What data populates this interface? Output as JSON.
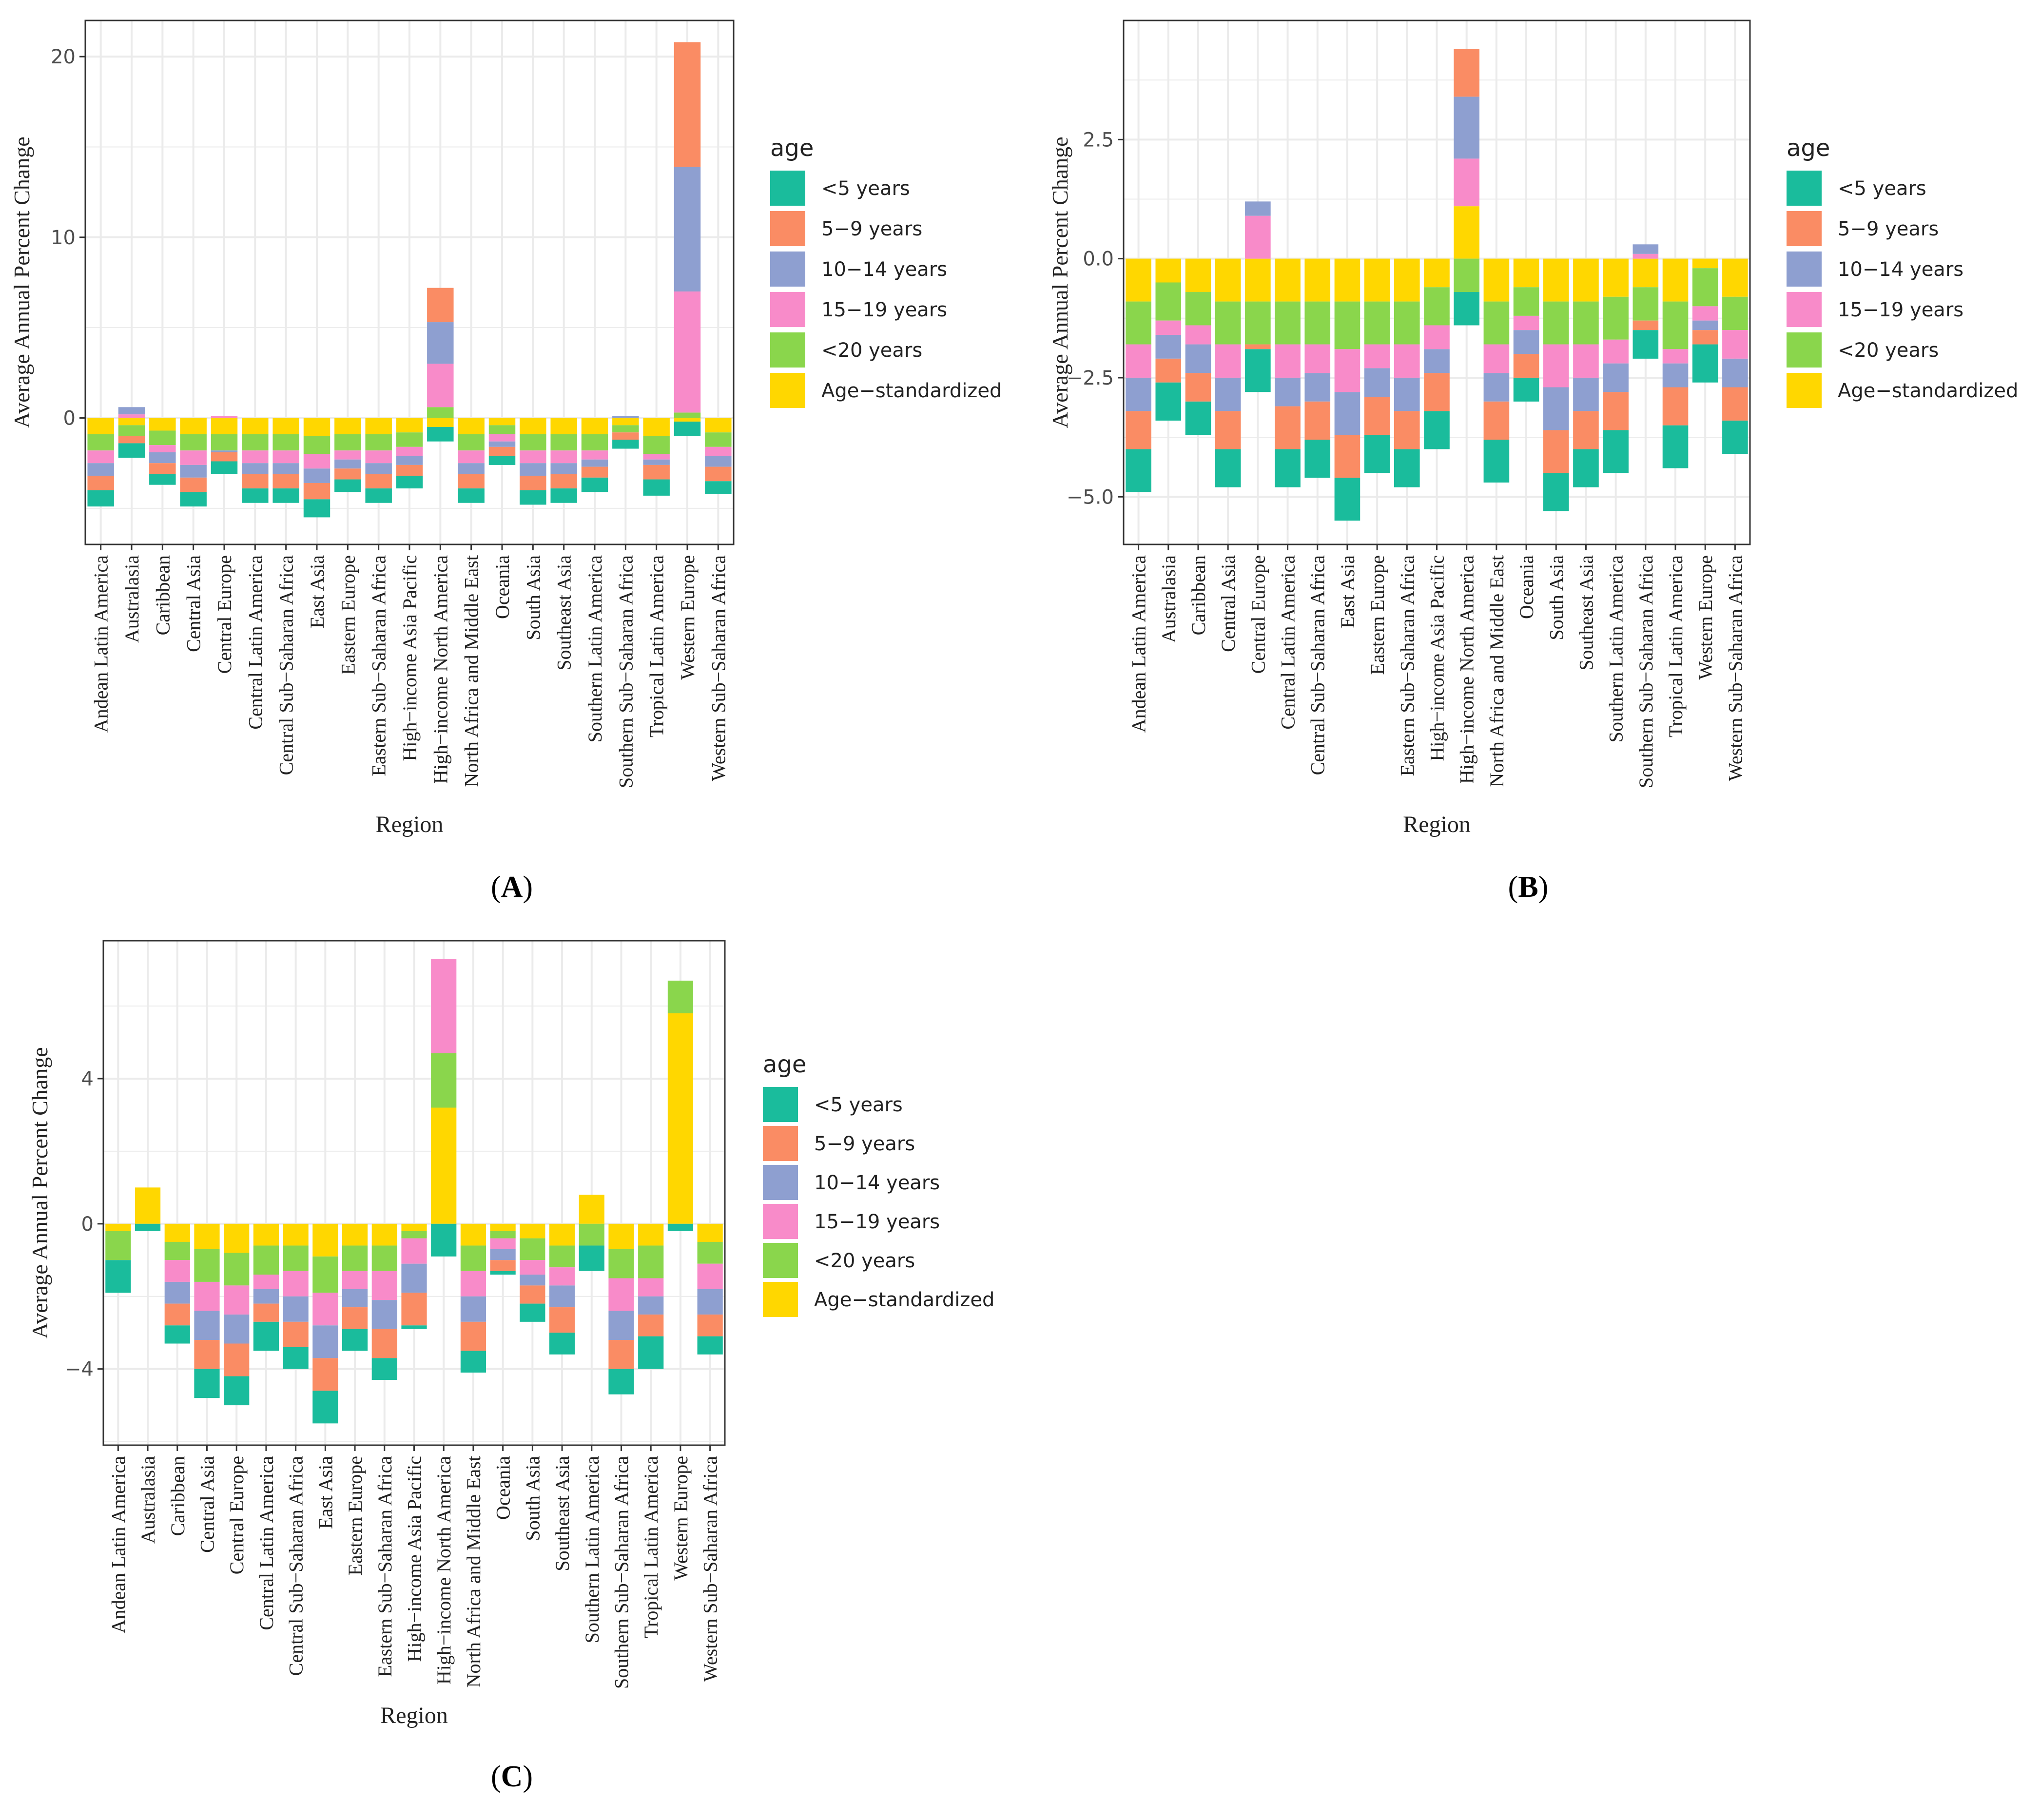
{
  "colors": {
    "<5 years": "#1ABC9C",
    "5-9 years": "#FA8C64",
    "10-14 years": "#8E9FD0",
    "15-19 years": "#F88BC9",
    "<20 years": "#8AD64C",
    "Age-standardized": "#FFD700",
    "panel_bg": "#FFFFFF",
    "grid": "#EBEBEB",
    "frame": "#333333"
  },
  "chart_data": [
    {
      "panel_label": "A",
      "type": "bar",
      "stacked": true,
      "xlabel": "Region",
      "ylabel": "Average Annual Percent Change",
      "ylim": [
        -7,
        22
      ],
      "yticks": [
        0,
        10,
        20
      ],
      "tick_labels": [
        "0",
        "10",
        "20"
      ],
      "legend_title": "age",
      "legend_labels": [
        "<5 years",
        "5−9 years",
        "10−14 years",
        "15−19 years",
        "<20 years",
        "Age−standardized"
      ],
      "grid": true,
      "categories": [
        "Andean Latin America",
        "Australasia",
        "Caribbean",
        "Central Asia",
        "Central Europe",
        "Central Latin America",
        "Central Sub−Saharan Africa",
        "East Asia",
        "Eastern Europe",
        "Eastern Sub−Saharan Africa",
        "High−income Asia Pacific",
        "High−income North America",
        "North Africa and Middle East",
        "Oceania",
        "South Asia",
        "Southeast Asia",
        "Southern Latin America",
        "Southern Sub−Saharan Africa",
        "Tropical Latin America",
        "Western Europe",
        "Western Sub−Saharan Africa"
      ],
      "series": [
        {
          "name": "Age-standardized",
          "values": [
            -0.9,
            -0.4,
            -0.7,
            -0.9,
            -0.9,
            -0.9,
            -0.9,
            -1.0,
            -0.9,
            -0.9,
            -0.8,
            -0.5,
            -0.9,
            -0.4,
            -0.9,
            -0.9,
            -0.9,
            -0.4,
            -1.0,
            -0.2,
            -0.8
          ]
        },
        {
          "name": "<20 years",
          "values": [
            -0.9,
            -0.6,
            -0.8,
            -0.9,
            -0.9,
            -0.9,
            -0.9,
            -1.0,
            -0.9,
            -0.9,
            -0.8,
            0.6,
            -0.9,
            -0.5,
            -0.9,
            -0.9,
            -0.9,
            -0.4,
            -1.0,
            0.3,
            -0.8
          ]
        },
        {
          "name": "15-19 years",
          "values": [
            -0.7,
            0.2,
            -0.4,
            -0.8,
            0.1,
            -0.7,
            -0.7,
            -0.8,
            -0.5,
            -0.7,
            -0.5,
            2.4,
            -0.7,
            -0.4,
            -0.7,
            -0.7,
            -0.5,
            0.0,
            -0.3,
            6.7,
            -0.5
          ]
        },
        {
          "name": "10-14 years",
          "values": [
            -0.7,
            0.4,
            -0.6,
            -0.7,
            -0.1,
            -0.6,
            -0.6,
            -0.8,
            -0.5,
            -0.6,
            -0.5,
            2.3,
            -0.6,
            -0.3,
            -0.7,
            -0.6,
            -0.4,
            0.1,
            -0.3,
            6.9,
            -0.6
          ]
        },
        {
          "name": "5-9 years",
          "values": [
            -0.8,
            -0.4,
            -0.6,
            -0.8,
            -0.5,
            -0.8,
            -0.8,
            -0.9,
            -0.6,
            -0.8,
            -0.6,
            1.9,
            -0.8,
            -0.5,
            -0.8,
            -0.8,
            -0.6,
            -0.4,
            -0.8,
            6.9,
            -0.8
          ]
        },
        {
          "name": "<5 years",
          "values": [
            -0.9,
            -0.8,
            -0.6,
            -0.8,
            -0.7,
            -0.8,
            -0.8,
            -1.0,
            -0.7,
            -0.8,
            -0.7,
            -0.8,
            -0.8,
            -0.5,
            -0.8,
            -0.8,
            -0.8,
            -0.5,
            -0.9,
            -0.8,
            -0.7
          ]
        }
      ]
    },
    {
      "panel_label": "B",
      "type": "bar",
      "stacked": true,
      "xlabel": "Region",
      "ylabel": "Average Annual Percent Change",
      "ylim": [
        -6.0,
        5.0
      ],
      "yticks": [
        2.5,
        0.0,
        -2.5,
        -5.0
      ],
      "tick_labels": [
        "2.5",
        "0.0",
        "−2.5",
        "−5.0"
      ],
      "legend_title": "age",
      "legend_labels": [
        "<5 years",
        "5−9 years",
        "10−14 years",
        "15−19 years",
        "<20 years",
        "Age−standardized"
      ],
      "grid": true,
      "categories": [
        "Andean Latin America",
        "Australasia",
        "Caribbean",
        "Central Asia",
        "Central Europe",
        "Central Latin America",
        "Central Sub−Saharan Africa",
        "East Asia",
        "Eastern Europe",
        "Eastern Sub−Saharan Africa",
        "High−income Asia Pacific",
        "High−income North America",
        "North Africa and Middle East",
        "Oceania",
        "South Asia",
        "Southeast Asia",
        "Southern Latin America",
        "Southern Sub−Saharan Africa",
        "Tropical Latin America",
        "Western Europe",
        "Western Sub−Saharan Africa"
      ],
      "series": [
        {
          "name": "Age-standardized",
          "values": [
            -0.9,
            -0.5,
            -0.7,
            -0.9,
            -0.9,
            -0.9,
            -0.9,
            -0.9,
            -0.9,
            -0.9,
            -0.6,
            1.1,
            -0.9,
            -0.6,
            -0.9,
            -0.9,
            -0.8,
            -0.6,
            -0.9,
            -0.2,
            -0.8
          ]
        },
        {
          "name": "<20 years",
          "values": [
            -0.9,
            -0.8,
            -0.7,
            -0.9,
            -0.9,
            -0.9,
            -0.9,
            -1.0,
            -0.9,
            -0.9,
            -0.8,
            -0.7,
            -0.9,
            -0.6,
            -0.9,
            -0.9,
            -0.9,
            -0.7,
            -1.0,
            -0.8,
            -0.7
          ]
        },
        {
          "name": "15-19 years",
          "values": [
            -0.7,
            -0.3,
            -0.4,
            -0.7,
            0.9,
            -0.7,
            -0.6,
            -0.9,
            -0.5,
            -0.7,
            -0.5,
            1.0,
            -0.6,
            -0.3,
            -0.9,
            -0.7,
            -0.5,
            0.1,
            -0.3,
            -0.3,
            -0.6
          ]
        },
        {
          "name": "10-14 years",
          "values": [
            -0.7,
            -0.5,
            -0.6,
            -0.7,
            0.3,
            -0.6,
            -0.6,
            -0.9,
            -0.6,
            -0.7,
            -0.5,
            1.3,
            -0.6,
            -0.5,
            -0.9,
            -0.7,
            -0.6,
            0.2,
            -0.5,
            -0.2,
            -0.6
          ]
        },
        {
          "name": "5-9 years",
          "values": [
            -0.8,
            -0.5,
            -0.6,
            -0.8,
            -0.1,
            -0.9,
            -0.8,
            -0.9,
            -0.8,
            -0.8,
            -0.8,
            1.0,
            -0.8,
            -0.5,
            -0.9,
            -0.8,
            -0.8,
            -0.2,
            -0.8,
            -0.3,
            -0.7
          ]
        },
        {
          "name": "<5 years",
          "values": [
            -0.9,
            -0.8,
            -0.7,
            -0.8,
            -0.9,
            -0.8,
            -0.8,
            -0.9,
            -0.8,
            -0.8,
            -0.8,
            -0.7,
            -0.9,
            -0.5,
            -0.8,
            -0.8,
            -0.9,
            -0.6,
            -0.9,
            -0.8,
            -0.7
          ]
        }
      ]
    },
    {
      "panel_label": "C",
      "type": "bar",
      "stacked": true,
      "xlabel": "Region",
      "ylabel": "Average Annual Percent Change",
      "ylim": [
        -6.1,
        7.8
      ],
      "yticks": [
        4,
        0,
        -4
      ],
      "tick_labels": [
        "4",
        "0",
        "−4"
      ],
      "legend_title": "age",
      "legend_labels": [
        "<5 years",
        "5−9 years",
        "10−14 years",
        "15−19 years",
        "<20 years",
        "Age−standardized"
      ],
      "grid": true,
      "categories": [
        "Andean Latin America",
        "Australasia",
        "Caribbean",
        "Central Asia",
        "Central Europe",
        "Central Latin America",
        "Central Sub−Saharan Africa",
        "East Asia",
        "Eastern Europe",
        "Eastern Sub−Saharan Africa",
        "High−income Asia Pacific",
        "High−income North America",
        "North Africa and Middle East",
        "Oceania",
        "South Asia",
        "Southeast Asia",
        "Southern Latin America",
        "Southern Sub−Saharan Africa",
        "Tropical Latin America",
        "Western Europe",
        "Western Sub−Saharan Africa"
      ],
      "series": [
        {
          "name": "Age-standardized",
          "values": [
            -0.2,
            1.0,
            -0.5,
            -0.7,
            -0.8,
            -0.6,
            -0.6,
            -0.9,
            -0.6,
            -0.6,
            -0.2,
            3.2,
            -0.6,
            -0.2,
            -0.4,
            -0.6,
            0.8,
            -0.7,
            -0.6,
            5.8,
            -0.5
          ]
        },
        {
          "name": "<20 years",
          "values": [
            -0.8,
            0.0,
            -0.5,
            -0.9,
            -0.9,
            -0.8,
            -0.7,
            -1.0,
            -0.7,
            -0.7,
            -0.2,
            1.5,
            -0.7,
            -0.2,
            -0.6,
            -0.6,
            -0.6,
            -0.8,
            -0.9,
            0.9,
            -0.6
          ]
        },
        {
          "name": "15-19 years",
          "values": [
            0.0,
            0.0,
            -0.6,
            -0.8,
            -0.8,
            -0.4,
            -0.7,
            -0.9,
            -0.5,
            -0.8,
            -0.7,
            2.6,
            -0.7,
            -0.3,
            -0.4,
            -0.5,
            0.0,
            -0.9,
            -0.5,
            0.0,
            -0.7
          ]
        },
        {
          "name": "10-14 years",
          "values": [
            0.0,
            0.0,
            -0.6,
            -0.8,
            -0.8,
            -0.4,
            -0.7,
            -0.9,
            -0.5,
            -0.8,
            -0.8,
            0.0,
            -0.7,
            -0.3,
            -0.3,
            -0.6,
            0.0,
            -0.8,
            -0.5,
            0.0,
            -0.7
          ]
        },
        {
          "name": "5-9 years",
          "values": [
            0.0,
            0.0,
            -0.6,
            -0.8,
            -0.9,
            -0.5,
            -0.7,
            -0.9,
            -0.6,
            -0.8,
            -0.9,
            0.0,
            -0.8,
            -0.3,
            -0.5,
            -0.7,
            0.0,
            -0.8,
            -0.6,
            0.0,
            -0.6
          ]
        },
        {
          "name": "<5 years",
          "values": [
            -0.9,
            -0.2,
            -0.5,
            -0.8,
            -0.8,
            -0.8,
            -0.6,
            -0.9,
            -0.6,
            -0.6,
            -0.1,
            -0.9,
            -0.6,
            -0.1,
            -0.5,
            -0.6,
            -0.7,
            -0.7,
            -0.9,
            -0.2,
            -0.5
          ]
        }
      ]
    }
  ]
}
